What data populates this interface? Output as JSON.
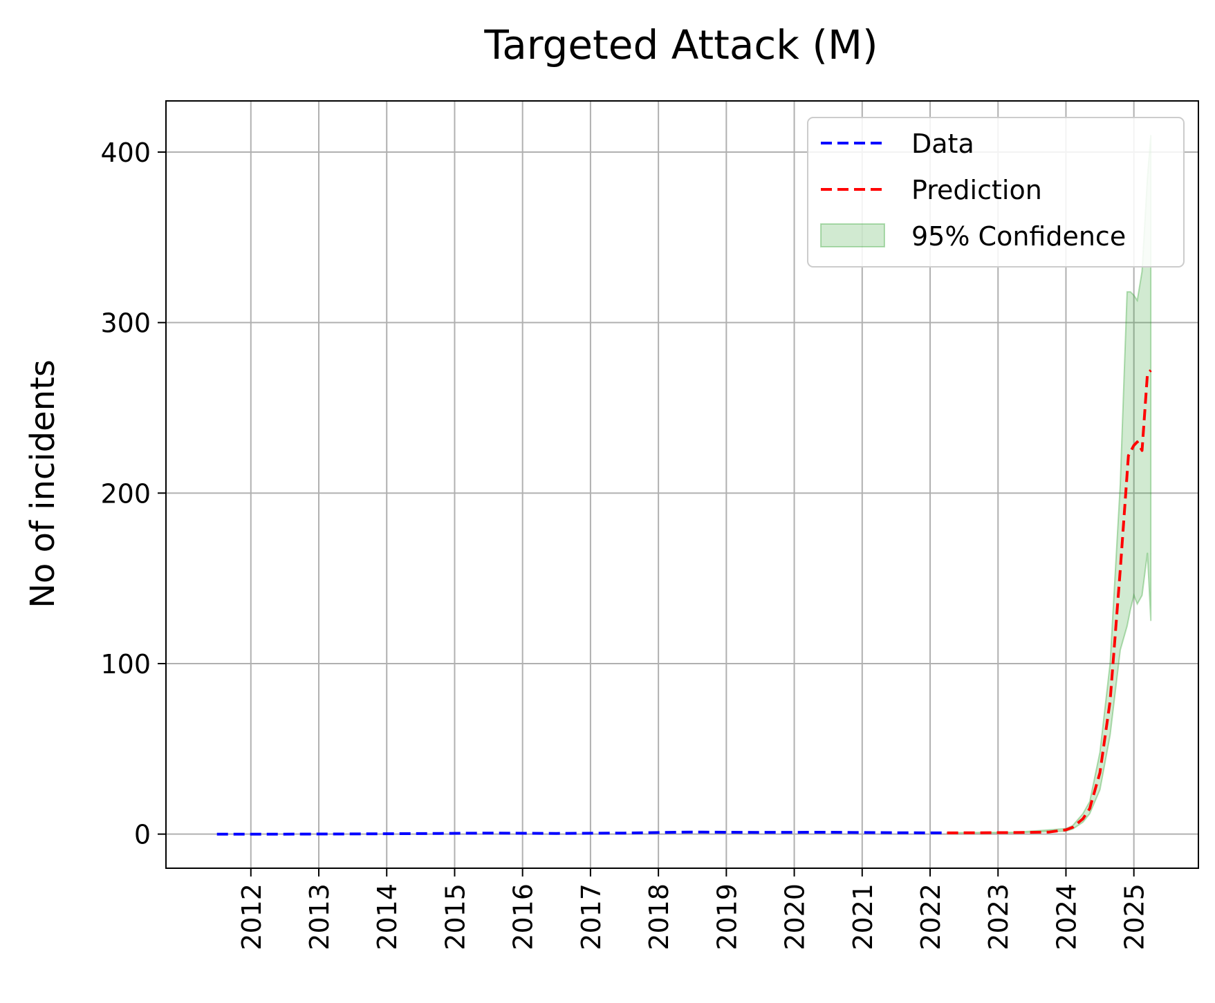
{
  "chart_data": {
    "type": "line",
    "title": "Targeted Attack (M)",
    "xlabel": "",
    "ylabel": "No of incidents",
    "xlim": [
      2010.75,
      2025.95
    ],
    "ylim": [
      -20,
      430
    ],
    "xticks": [
      2012,
      2013,
      2014,
      2015,
      2016,
      2017,
      2018,
      2019,
      2020,
      2021,
      2022,
      2023,
      2024,
      2025
    ],
    "yticks": [
      0,
      100,
      200,
      300,
      400
    ],
    "grid": true,
    "legend": "top-right",
    "colors": {
      "data": "#0000ff",
      "prediction": "#ff0000",
      "confidence": "#2ca02c"
    },
    "series": [
      {
        "name": "Data",
        "style": "dashed",
        "color": "#0000ff",
        "x": [
          2011.5,
          2012.5,
          2013.5,
          2014.5,
          2015.5,
          2016.5,
          2017.5,
          2018.5,
          2019.5,
          2020.5,
          2021.5,
          2022.25
        ],
        "y": [
          0,
          0,
          0.1,
          0.3,
          0.6,
          0.4,
          0.6,
          1.2,
          1.0,
          1.1,
          0.8,
          0.7
        ]
      },
      {
        "name": "Prediction",
        "style": "dashed",
        "color": "#ff0000",
        "x": [
          2022.25,
          2022.75,
          2023.25,
          2023.75,
          2024.0,
          2024.1,
          2024.25,
          2024.35,
          2024.5,
          2024.65,
          2024.8,
          2024.92,
          2025.0,
          2025.05,
          2025.12,
          2025.2,
          2025.25
        ],
        "y": [
          0.7,
          0.8,
          0.9,
          1.2,
          2.5,
          4,
          9,
          15,
          36,
          78,
          155,
          222,
          228,
          230,
          225,
          270,
          272
        ]
      },
      {
        "name": "95% Confidence",
        "type": "band",
        "color": "#2ca02c",
        "x": [
          2022.25,
          2023.25,
          2024.0,
          2024.1,
          2024.25,
          2024.35,
          2024.5,
          2024.65,
          2024.8,
          2024.9,
          2024.95,
          2025.0,
          2025.05,
          2025.12,
          2025.2,
          2025.25
        ],
        "lower": [
          0.6,
          0.7,
          1.8,
          3,
          7,
          12,
          26,
          58,
          108,
          122,
          132,
          140,
          135,
          140,
          165,
          125
        ],
        "upper": [
          0.8,
          1.1,
          3.2,
          5,
          12,
          19,
          48,
          100,
          205,
          318,
          318,
          316,
          313,
          330,
          385,
          410
        ]
      }
    ]
  }
}
